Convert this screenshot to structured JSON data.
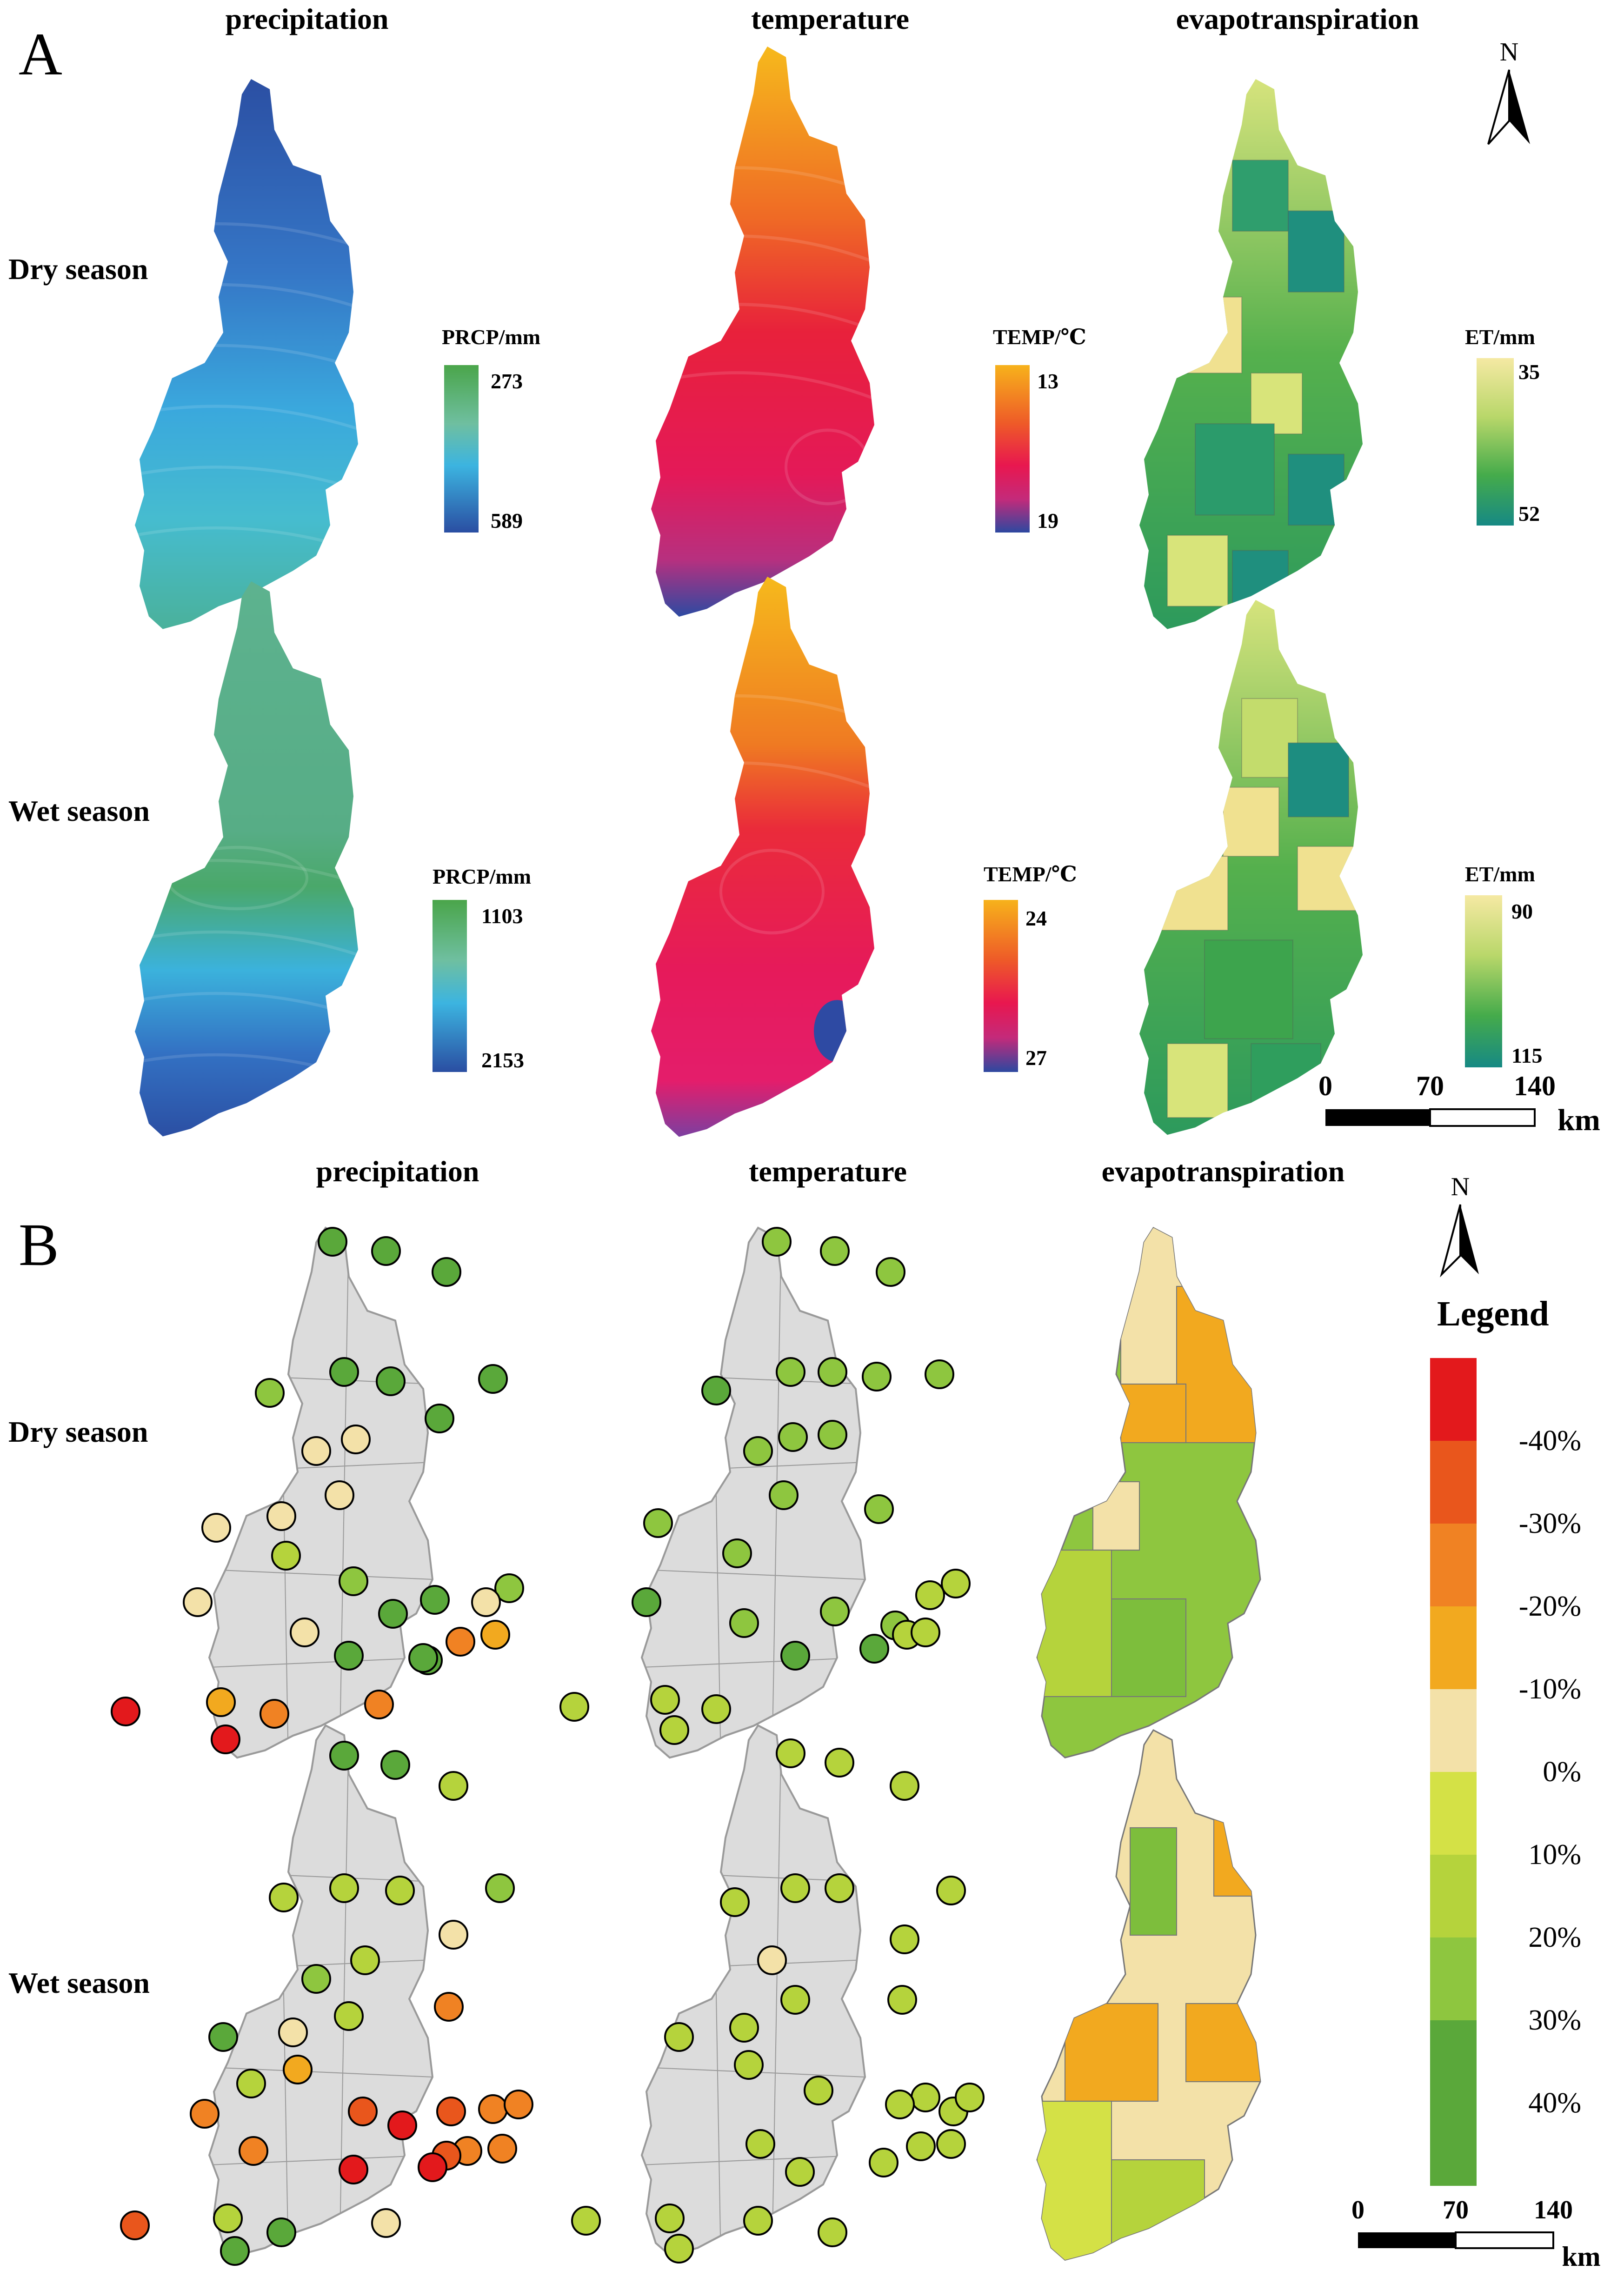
{
  "panel_a": {
    "label": "A",
    "columns": [
      "precipitation",
      "temperature",
      "evapotranspiration"
    ],
    "rows": [
      "Dry season",
      "Wet season"
    ],
    "legends": {
      "dry_prcp": {
        "title": "PRCP/mm",
        "top": "273",
        "bottom": "589"
      },
      "dry_temp": {
        "title": "TEMP/℃",
        "top": "13",
        "bottom": "19"
      },
      "dry_et": {
        "title": "ET/mm",
        "top": "35",
        "bottom": "52"
      },
      "wet_prcp": {
        "title": "PRCP/mm",
        "top": "1103",
        "bottom": "2153"
      },
      "wet_temp": {
        "title": "TEMP/℃",
        "top": "24",
        "bottom": "27"
      },
      "wet_et": {
        "title": "ET/mm",
        "top": "90",
        "bottom": "115"
      }
    },
    "north": "N",
    "scale": {
      "labels": [
        "0",
        "70",
        "140"
      ],
      "unit": "km"
    }
  },
  "panel_b": {
    "label": "B",
    "columns": [
      "precipitation",
      "temperature",
      "evapotranspiration"
    ],
    "rows": [
      "Dry season",
      "Wet season"
    ],
    "north": "N",
    "legend": {
      "title": "Legend",
      "labels": [
        "-40%",
        "-30%",
        "-20%",
        "-10%",
        "0%",
        "10%",
        "20%",
        "30%",
        "40%"
      ],
      "colors": [
        "#e3191c",
        "#e9561c",
        "#f08223",
        "#f2a91f",
        "#f3e1a8",
        "#d4e146",
        "#b5d33c",
        "#8ec63f",
        "#5aa83a"
      ]
    },
    "scale": {
      "labels": [
        "0",
        "70",
        "140"
      ],
      "unit": "km"
    }
  },
  "colors": {
    "prcp_low": "#4aa54a",
    "prcp_mid": "#39b3dc",
    "prcp_high": "#2a4ea2",
    "temp_low": "#f7b21b",
    "temp_mid": "#e8174f",
    "temp_high": "#2d48a0",
    "et_low": "#f1e49b",
    "et_mid": "#4aae4a",
    "et_high": "#178a83",
    "catchment_grey": "#dcdcdc"
  }
}
